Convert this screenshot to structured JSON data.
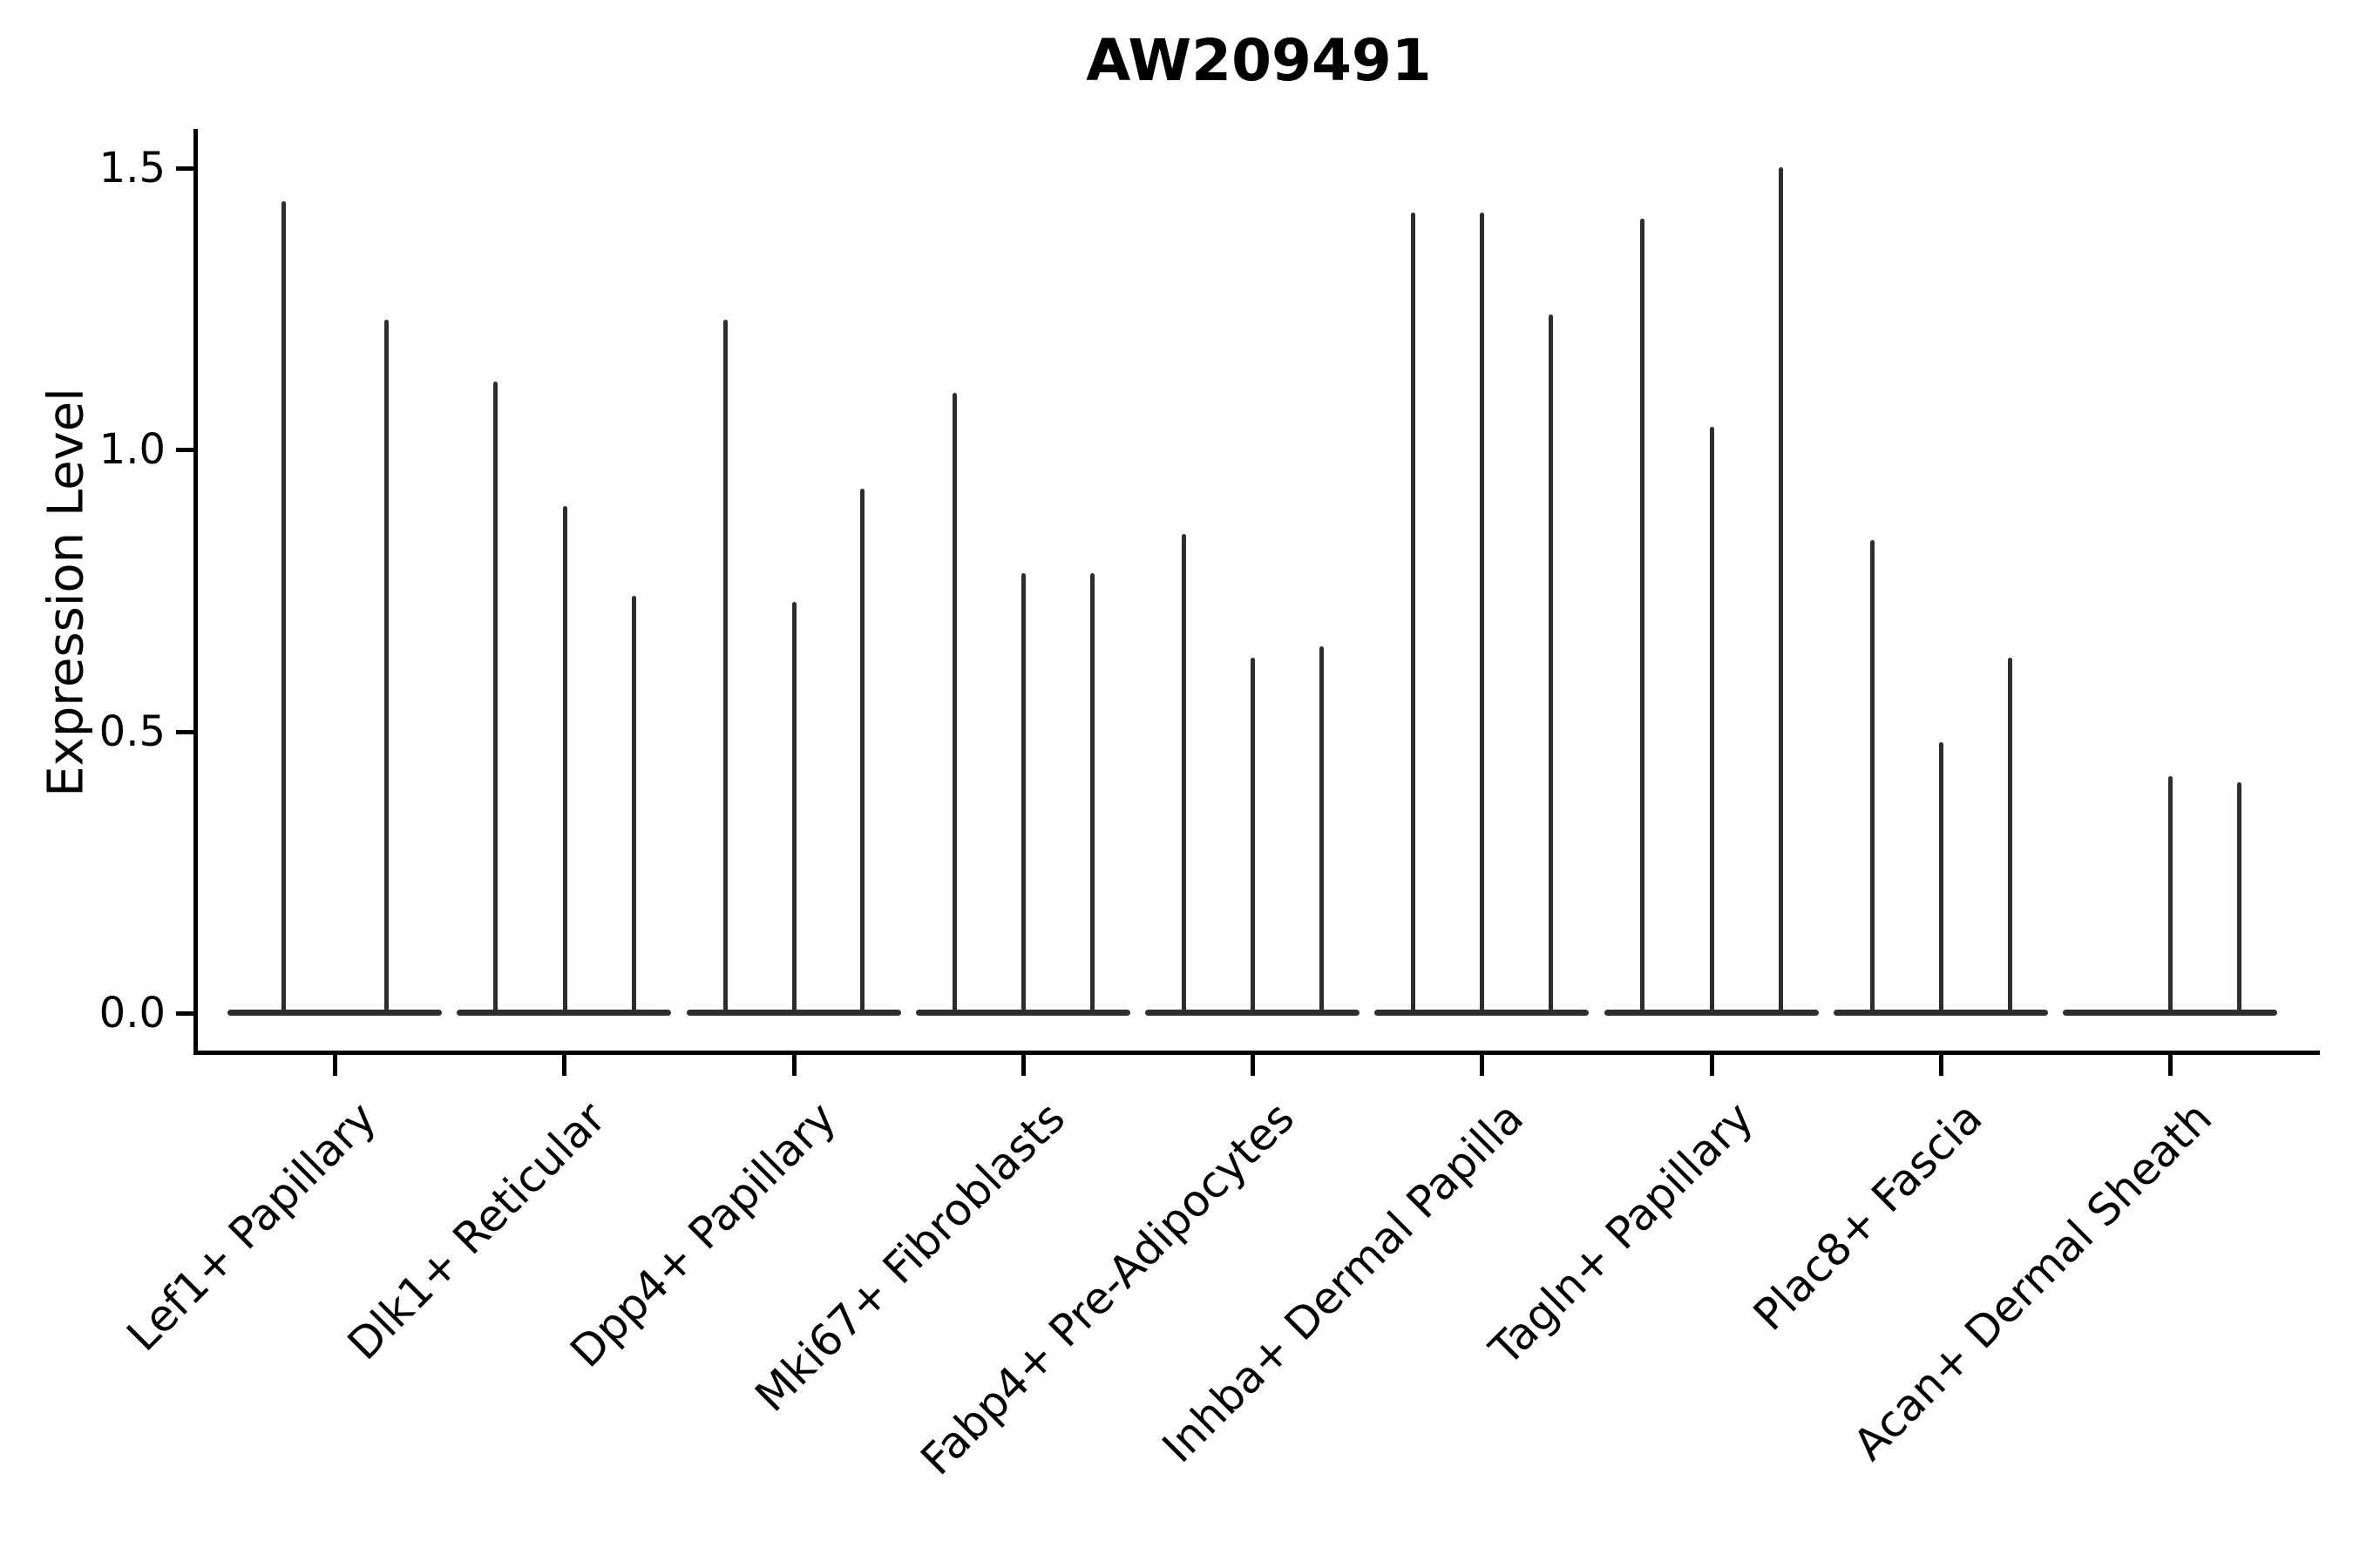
{
  "figure": {
    "background": "#ffffff",
    "text_color": "#000000",
    "violin_color": "#2e2e2e"
  },
  "chart_data": {
    "type": "violin",
    "title": "AW209491",
    "xlabel": "",
    "ylabel": "Expression Level",
    "ylim": [
      -0.07,
      1.57
    ],
    "yticks": [
      "0.0",
      "0.5",
      "1.0",
      "1.5"
    ],
    "grid": false,
    "legend": null,
    "categories": [
      "Lef1+ Papillary",
      "Dlk1+ Reticular",
      "Dpp4+ Papillary",
      "Mki67+ Fibroblasts",
      "Fabp4+ Pre-Adipocytes",
      "Inhba+ Dermal Papilla",
      "Tagln+ Papillary",
      "Plac8+ Fascia",
      "Acan+ Dermal Sheath"
    ],
    "groups": [
      {
        "label": "Lef1+ Papillary",
        "tick_x": 384,
        "violins": [
          {
            "x": 325,
            "max": 1.44
          },
          {
            "x": 443,
            "max": 1.23
          }
        ]
      },
      {
        "label": "Dlk1+ Reticular",
        "tick_x": 647,
        "violins": [
          {
            "x": 568,
            "max": 1.12
          },
          {
            "x": 648,
            "max": 0.9
          },
          {
            "x": 727,
            "max": 0.74
          }
        ]
      },
      {
        "label": "Dpp4+ Papillary",
        "tick_x": 911,
        "violins": [
          {
            "x": 832,
            "max": 1.23
          },
          {
            "x": 911,
            "max": 0.73
          },
          {
            "x": 989,
            "max": 0.93
          }
        ]
      },
      {
        "label": "Mki67+ Fibroblasts",
        "tick_x": 1174,
        "violins": [
          {
            "x": 1095,
            "max": 1.1
          },
          {
            "x": 1174,
            "max": 0.78
          },
          {
            "x": 1253,
            "max": 0.78
          }
        ]
      },
      {
        "label": "Fabp4+ Pre-Adipocytes",
        "tick_x": 1437,
        "violins": [
          {
            "x": 1358,
            "max": 0.85
          },
          {
            "x": 1437,
            "max": 0.63
          },
          {
            "x": 1516,
            "max": 0.65
          }
        ]
      },
      {
        "label": "Inhba+ Dermal Papilla",
        "tick_x": 1700,
        "violins": [
          {
            "x": 1621,
            "max": 1.42
          },
          {
            "x": 1700,
            "max": 1.42
          },
          {
            "x": 1779,
            "max": 1.24
          }
        ]
      },
      {
        "label": "Tagln+ Papillary",
        "tick_x": 1964,
        "violins": [
          {
            "x": 1884,
            "max": 1.41
          },
          {
            "x": 1964,
            "max": 1.04
          },
          {
            "x": 2043,
            "max": 1.5
          }
        ]
      },
      {
        "label": "Plac8+ Fascia",
        "tick_x": 2227,
        "violins": [
          {
            "x": 2148,
            "max": 0.84
          },
          {
            "x": 2227,
            "max": 0.48
          },
          {
            "x": 2306,
            "max": 0.63
          }
        ]
      },
      {
        "label": "Acan+ Dermal Sheath",
        "tick_x": 2490,
        "violins": [
          {
            "x": 2490,
            "max": 0.42
          },
          {
            "x": 2569,
            "max": 0.41
          }
        ]
      }
    ]
  }
}
